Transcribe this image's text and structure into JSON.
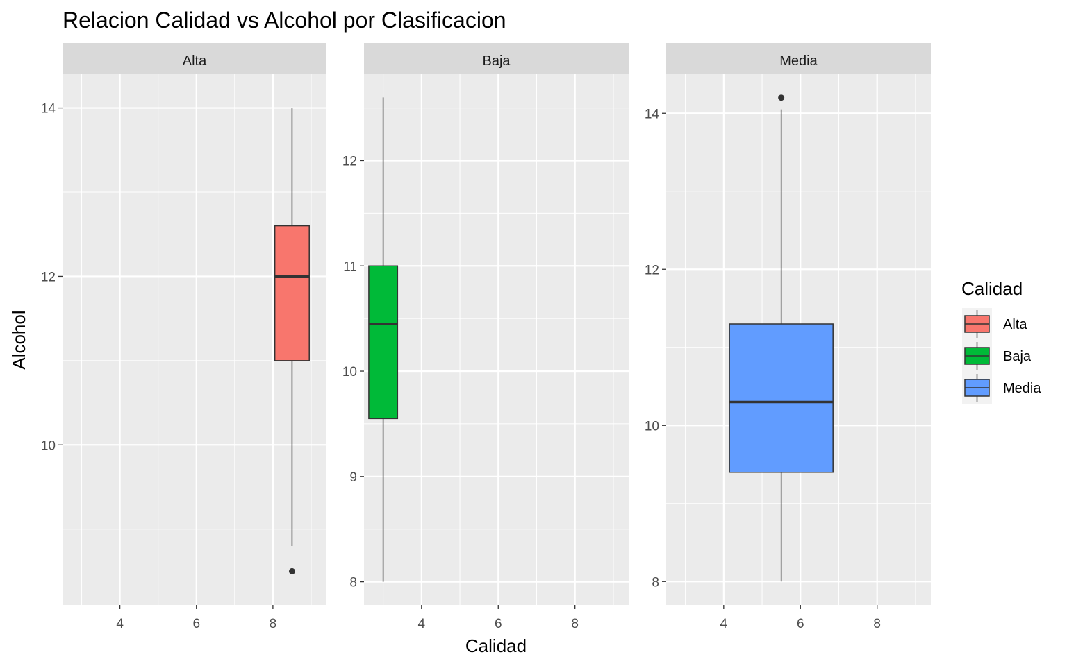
{
  "chart_data": {
    "type": "boxplot",
    "title": "Relacion Calidad vs Alcohol por Clasificacion",
    "xlabel": "Calidad",
    "ylabel": "Alcohol",
    "xlim": [
      2.5,
      9.4
    ],
    "x_ticks": [
      4,
      6,
      8
    ],
    "grid": true,
    "facet_scales": "free_y",
    "legend": {
      "title": "Calidad",
      "position": "right",
      "entries": [
        {
          "label": "Alta",
          "color": "#F8766D"
        },
        {
          "label": "Baja",
          "color": "#00BA38"
        },
        {
          "label": "Media",
          "color": "#619CFF"
        }
      ]
    },
    "panels": [
      {
        "label": "Alta",
        "color": "#F8766D",
        "ylim": [
          8.1,
          14.4
        ],
        "y_ticks": [
          10,
          12,
          14
        ],
        "box": {
          "x": 8.5,
          "width": 0.9,
          "whisker_low": 8.8,
          "q1": 11.0,
          "median": 12.0,
          "q3": 12.6,
          "whisker_high": 14.0,
          "outliers": [
            8.5
          ]
        }
      },
      {
        "label": "Baja",
        "color": "#00BA38",
        "ylim": [
          7.78,
          12.82
        ],
        "y_ticks": [
          8,
          9,
          10,
          11,
          12
        ],
        "box": {
          "x": 3.0,
          "width": 0.75,
          "whisker_low": 8.0,
          "q1": 9.55,
          "median": 10.45,
          "q3": 11.0,
          "whisker_high": 12.6,
          "outliers": []
        }
      },
      {
        "label": "Media",
        "color": "#619CFF",
        "ylim": [
          7.7,
          14.5
        ],
        "y_ticks": [
          8,
          10,
          12,
          14
        ],
        "box": {
          "x": 5.5,
          "width": 2.7,
          "whisker_low": 8.0,
          "q1": 9.4,
          "median": 10.3,
          "q3": 11.3,
          "whisker_high": 14.05,
          "outliers": [
            14.2
          ]
        }
      }
    ]
  }
}
